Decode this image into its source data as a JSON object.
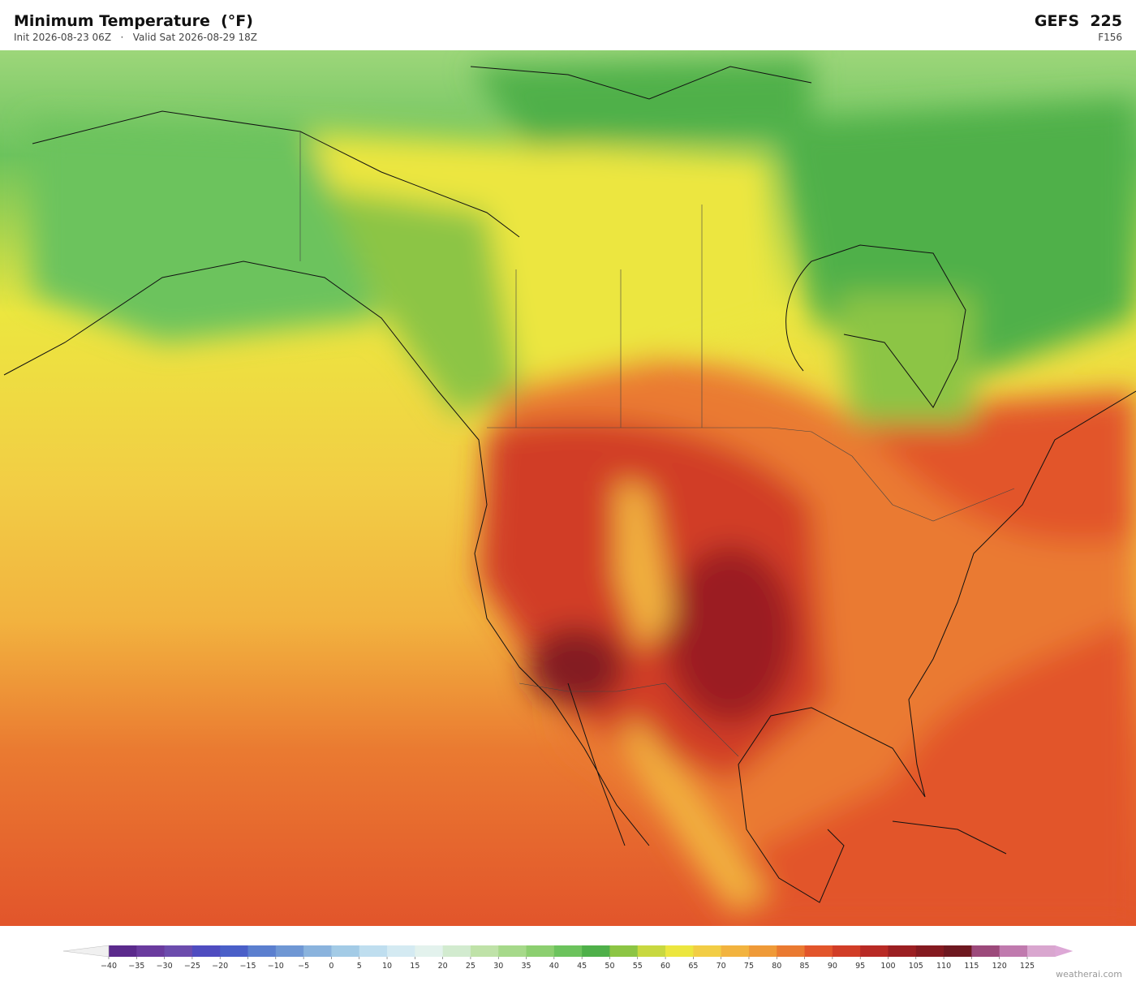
{
  "header": {
    "title": "Minimum Temperature  (°F)",
    "init": "Init 2026-08-23 06Z",
    "valid": "Valid Sat 2026-08-29 18Z",
    "model": "GEFS  225",
    "forecast_hour": "F156"
  },
  "colorbar": {
    "ticks": [
      {
        "value": -40,
        "label": "−40"
      },
      {
        "value": -35,
        "label": "−35"
      },
      {
        "value": -30,
        "label": "−30"
      },
      {
        "value": -25,
        "label": "−25"
      },
      {
        "value": -20,
        "label": "−20"
      },
      {
        "value": -15,
        "label": "−15"
      },
      {
        "value": -10,
        "label": "−10"
      },
      {
        "value": -5,
        "label": "−5"
      },
      0,
      5,
      10,
      15,
      20,
      25,
      30,
      35,
      40,
      45,
      50,
      55,
      60,
      65,
      70,
      75,
      80,
      85,
      90,
      95,
      100,
      105,
      110,
      115,
      120,
      125
    ],
    "colors": [
      "#5b2a8c",
      "#6a3b9e",
      "#6c4cad",
      "#4f4cc0",
      "#4a5fc8",
      "#5b7fcf",
      "#6f97d4",
      "#8ab3dd",
      "#a3cbe6",
      "#bfdeef",
      "#d4eaf2",
      "#e3f2ed",
      "#d2ebcf",
      "#bfe2a8",
      "#a6d98a",
      "#8ccf70",
      "#6cc35d",
      "#4fb04a",
      "#8cc544",
      "#c8d840",
      "#ece63f",
      "#f2cd45",
      "#f2b33f",
      "#ef9a38",
      "#ea7a31",
      "#e2552b",
      "#d13d27",
      "#b82a25",
      "#9b1f22",
      "#841a20",
      "#6e1820",
      "#9c4a7b",
      "#c07aae",
      "#d9a6cf"
    ],
    "under_color": "#f0f0f0",
    "over_color": "#dda8d6"
  },
  "watermark": "weatherai.com"
}
